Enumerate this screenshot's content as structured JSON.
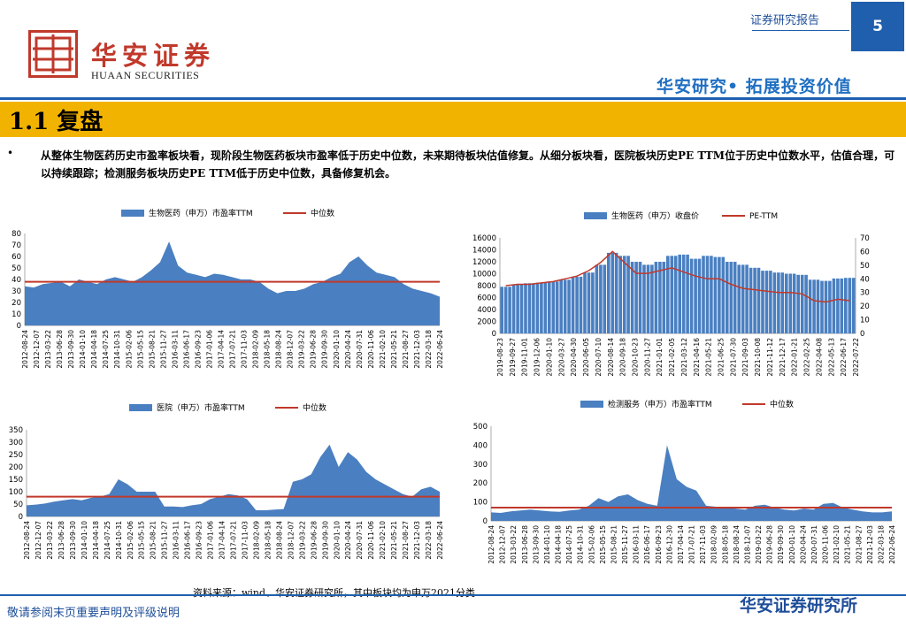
{
  "header": {
    "logo_cn": "华安证券",
    "logo_en": "HUAAN SECURITIES",
    "report_type": "证券研究报告",
    "page_number": "5",
    "slogan": "华安研究• 拓展投资价值",
    "brand_color": "#c0392b",
    "accent_color": "#1f5fae"
  },
  "section": {
    "title": "1.1 复盘",
    "bullet": "•",
    "summary": "从整体生物医药历史市盈率板块看，现阶段生物医药板块市盈率低于历史中位数，未来期待板块估值修复。从细分板块看，医院板块历史PE TTM位于历史中位数水平，估值合理，可以持续跟踪；检测服务板块历史PE TTM低于历史中位数，具备修复机会。"
  },
  "chart_data": [
    {
      "type": "area",
      "legend": [
        "生物医药（申万）市盈率TTM",
        "中位数"
      ],
      "series_color": "#4a7fc1",
      "median_color": "#c0392b",
      "ylim": [
        0,
        80
      ],
      "yticks": [
        0,
        10,
        20,
        30,
        40,
        50,
        60,
        70,
        80
      ],
      "median": 38,
      "xticks": [
        "2012-08-24",
        "2012-12-07",
        "2013-03-22",
        "2013-06-28",
        "2013-09-30",
        "2014-01-10",
        "2014-04-18",
        "2014-07-25",
        "2014-10-31",
        "2015-02-06",
        "2015-05-15",
        "2015-08-21",
        "2015-11-27",
        "2016-03-11",
        "2016-06-17",
        "2016-09-23",
        "2017-01-06",
        "2017-04-14",
        "2017-07-21",
        "2017-11-03",
        "2018-02-09",
        "2018-05-18",
        "2018-08-24",
        "2018-12-07",
        "2019-03-22",
        "2019-06-28",
        "2019-09-30",
        "2020-01-10",
        "2020-04-24",
        "2020-07-31",
        "2020-11-06",
        "2021-02-10",
        "2021-05-21",
        "2021-08-27",
        "2021-12-03",
        "2022-03-18",
        "2022-06-24"
      ],
      "values": [
        34,
        33,
        36,
        37,
        38,
        34,
        40,
        38,
        36,
        40,
        42,
        40,
        38,
        42,
        48,
        55,
        73,
        52,
        46,
        44,
        42,
        45,
        44,
        42,
        40,
        40,
        38,
        32,
        28,
        30,
        30,
        32,
        36,
        38,
        42,
        45,
        55,
        60,
        52,
        46,
        44,
        42,
        36,
        32,
        30,
        28,
        25
      ]
    },
    {
      "type": "bar-line",
      "legend": [
        "生物医药（申万）收盘价",
        "PE-TTM"
      ],
      "series_color": "#4a7fc1",
      "line_color": "#c0392b",
      "ylim_left": [
        0,
        16000
      ],
      "yticks_left": [
        0,
        2000,
        4000,
        6000,
        8000,
        10000,
        12000,
        14000,
        16000
      ],
      "ylim_right": [
        0,
        70
      ],
      "yticks_right": [
        0,
        10,
        20,
        30,
        40,
        50,
        60,
        70
      ],
      "xticks": [
        "2019-08-23",
        "2019-09-27",
        "2019-11-01",
        "2019-12-06",
        "2020-01-10",
        "2020-03-27",
        "2020-04-30",
        "2020-06-05",
        "2020-07-10",
        "2020-08-14",
        "2020-09-18",
        "2020-10-23",
        "2020-11-27",
        "2021-01-01",
        "2021-02-05",
        "2021-03-12",
        "2021-04-16",
        "2021-05-21",
        "2021-06-25",
        "2021-07-30",
        "2021-09-03",
        "2021-10-08",
        "2021-11-12",
        "2021-12-17",
        "2022-01-21",
        "2022-02-25",
        "2022-04-08",
        "2022-05-13",
        "2022-06-17",
        "2022-07-22"
      ],
      "bar_values": [
        7800,
        8200,
        8400,
        8500,
        8700,
        9000,
        9500,
        10200,
        11500,
        13500,
        13000,
        12000,
        11500,
        12000,
        13000,
        13200,
        12500,
        13000,
        12800,
        12000,
        11500,
        11000,
        10500,
        10200,
        10000,
        9800,
        9000,
        8800,
        9200,
        9300
      ],
      "line_values": [
        35,
        36,
        36,
        37,
        38,
        40,
        42,
        46,
        52,
        60,
        52,
        44,
        44,
        46,
        48,
        45,
        42,
        40,
        40,
        36,
        33,
        32,
        31,
        30,
        30,
        29,
        24,
        23,
        25,
        24
      ]
    },
    {
      "type": "area",
      "legend": [
        "医院（申万）市盈率TTM",
        "中位数"
      ],
      "series_color": "#4a7fc1",
      "median_color": "#c0392b",
      "ylim": [
        0,
        350
      ],
      "yticks": [
        0,
        50,
        100,
        150,
        200,
        250,
        300,
        350
      ],
      "median": 80,
      "xticks": [
        "2012-08-24",
        "2012-12-07",
        "2013-03-22",
        "2013-06-28",
        "2013-09-30",
        "2014-01-10",
        "2014-04-18",
        "2014-07-25",
        "2014-10-31",
        "2015-02-06",
        "2015-05-15",
        "2015-08-21",
        "2015-11-27",
        "2016-03-11",
        "2016-06-17",
        "2016-09-23",
        "2017-01-06",
        "2017-04-14",
        "2017-07-21",
        "2017-11-03",
        "2018-02-09",
        "2018-05-18",
        "2018-08-24",
        "2018-12-07",
        "2019-03-22",
        "2019-06-28",
        "2019-09-30",
        "2020-01-10",
        "2020-04-24",
        "2020-07-31",
        "2020-11-06",
        "2021-02-10",
        "2021-05-21",
        "2021-08-27",
        "2021-12-03",
        "2022-03-18",
        "2022-06-24"
      ],
      "values": [
        45,
        48,
        52,
        60,
        65,
        70,
        65,
        75,
        80,
        90,
        150,
        130,
        100,
        100,
        100,
        40,
        40,
        38,
        45,
        50,
        70,
        80,
        90,
        85,
        70,
        25,
        25,
        28,
        30,
        140,
        150,
        170,
        240,
        290,
        200,
        260,
        230,
        180,
        150,
        130,
        110,
        90,
        80,
        110,
        120,
        100
      ]
    },
    {
      "type": "area",
      "legend": [
        "检测服务（申万）市盈率TTM",
        "中位数"
      ],
      "series_color": "#4a7fc1",
      "median_color": "#c0392b",
      "ylim": [
        0,
        500
      ],
      "yticks": [
        0,
        100,
        200,
        300,
        400,
        500
      ],
      "median": 70,
      "xticks": [
        "2012-08-24",
        "2012-12-07",
        "2013-03-22",
        "2013-06-28",
        "2013-09-30",
        "2014-01-10",
        "2014-04-18",
        "2014-07-25",
        "2014-10-31",
        "2015-02-06",
        "2015-05-15",
        "2015-08-21",
        "2015-11-27",
        "2016-03-11",
        "2016-06-17",
        "2016-09-23",
        "2016-12-30",
        "2017-04-14",
        "2017-07-21",
        "2017-11-03",
        "2018-02-09",
        "2018-05-18",
        "2018-08-24",
        "2018-12-07",
        "2019-03-22",
        "2019-06-28",
        "2019-09-30",
        "2020-01-10",
        "2020-04-24",
        "2020-07-31",
        "2020-11-06",
        "2021-02-10",
        "2021-05-21",
        "2021-08-27",
        "2021-12-03",
        "2022-03-18",
        "2022-06-24"
      ],
      "values": [
        45,
        42,
        50,
        55,
        60,
        55,
        50,
        48,
        55,
        60,
        80,
        120,
        100,
        130,
        140,
        110,
        90,
        80,
        400,
        220,
        180,
        160,
        80,
        75,
        70,
        65,
        60,
        80,
        85,
        70,
        60,
        55,
        65,
        60,
        90,
        95,
        70,
        60,
        50,
        45,
        45,
        50
      ]
    }
  ],
  "footer": {
    "source": "资料来源：wind、华安证券研究所，其中板块均为申万2021分类",
    "disclaimer": "敬请参阅末页重要声明及评级说明",
    "institute": "华安证券研究所"
  }
}
